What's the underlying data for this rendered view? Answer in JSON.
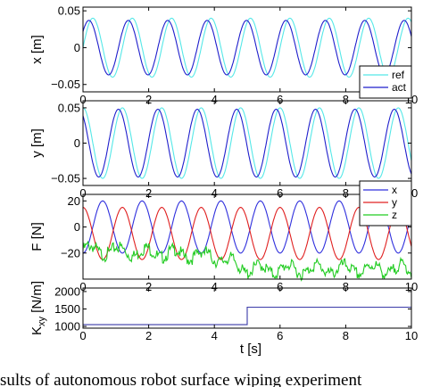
{
  "colors": {
    "ref": "#55e8e8",
    "act": "#1f1fcc",
    "x": "#3030dd",
    "y": "#e02020",
    "z": "#22cc22",
    "K": "#3a3aa8"
  },
  "caption": "sults of autonomous robot surface wiping experiment",
  "chart_data": [
    {
      "type": "line",
      "ylabel": "x [m]",
      "xlim": [
        0,
        10
      ],
      "ylim": [
        -0.06,
        0.055
      ],
      "xticks": [
        "0",
        "2",
        "4",
        "6",
        "8",
        "10"
      ],
      "yticks": [
        {
          "v": 0.05,
          "label": "0.05"
        },
        {
          "v": 0,
          "label": "0"
        },
        {
          "v": -0.05,
          "label": "−0.05"
        }
      ],
      "legend_position": "bottom-right",
      "series": [
        {
          "name": "ref",
          "kind": "sine",
          "amp": 0.04,
          "period": 1.2,
          "phase": 0.0,
          "offset": 0.0,
          "color_key": "ref"
        },
        {
          "name": "act",
          "kind": "sine",
          "amp": 0.037,
          "period": 1.2,
          "phase": -0.12,
          "offset": 0.0,
          "color_key": "act"
        }
      ]
    },
    {
      "type": "line",
      "ylabel": "y [m]",
      "xlim": [
        0,
        10
      ],
      "ylim": [
        -0.06,
        0.06
      ],
      "xticks": [
        "0",
        "2",
        "4",
        "6",
        "8",
        "10"
      ],
      "yticks": [
        {
          "v": 0.05,
          "label": "0.05"
        },
        {
          "v": 0,
          "label": "0"
        },
        {
          "v": -0.05,
          "label": "−0.05"
        }
      ],
      "series": [
        {
          "name": "ref",
          "kind": "cosine",
          "amp": 0.05,
          "period": 1.2,
          "phase": 0.0,
          "offset": 0.0,
          "color_key": "ref"
        },
        {
          "name": "act",
          "kind": "cosine",
          "amp": 0.048,
          "period": 1.2,
          "phase": -0.12,
          "offset": 0.0,
          "color_key": "act"
        }
      ]
    },
    {
      "type": "line",
      "ylabel": "F [N]",
      "xlim": [
        0,
        10
      ],
      "ylim": [
        -40,
        25
      ],
      "xticks": [
        "0",
        "2",
        "4",
        "6",
        "8",
        "10"
      ],
      "yticks": [
        {
          "v": 20,
          "label": "20"
        },
        {
          "v": 0,
          "label": "0"
        },
        {
          "v": -20,
          "label": "−20"
        }
      ],
      "legend_position": "top-right",
      "series": [
        {
          "name": "x",
          "kind": "sine",
          "amp": 20,
          "period": 1.2,
          "phase": 0.3,
          "offset": 0,
          "color_key": "x"
        },
        {
          "name": "y",
          "kind": "cosine",
          "amp": 20,
          "period": 1.2,
          "phase": 0.0,
          "offset": -5,
          "color_key": "y"
        },
        {
          "name": "z",
          "kind": "step_noise",
          "levels": [
            [
              0,
              -15
            ],
            [
              2,
              -17
            ],
            [
              4,
              -20
            ],
            [
              5,
              -30
            ],
            [
              10,
              -30
            ]
          ],
          "color_key": "z"
        }
      ]
    },
    {
      "type": "line",
      "ylabel": "K",
      "ylabel_sub": "xy",
      "ylabel_unit": "[N/m]",
      "xlabel": "t [s]",
      "xlim": [
        0,
        10
      ],
      "ylim": [
        950,
        2100
      ],
      "xticks": [
        "0",
        "2",
        "4",
        "6",
        "8",
        "10"
      ],
      "yticks": [
        {
          "v": 2000,
          "label": "2000"
        },
        {
          "v": 1500,
          "label": "1500"
        },
        {
          "v": 1000,
          "label": "1000"
        }
      ],
      "series": [
        {
          "name": "K",
          "kind": "step",
          "x": [
            0,
            5,
            5,
            10
          ],
          "y": [
            1050,
            1050,
            1550,
            1550
          ],
          "color_key": "K"
        }
      ]
    }
  ]
}
